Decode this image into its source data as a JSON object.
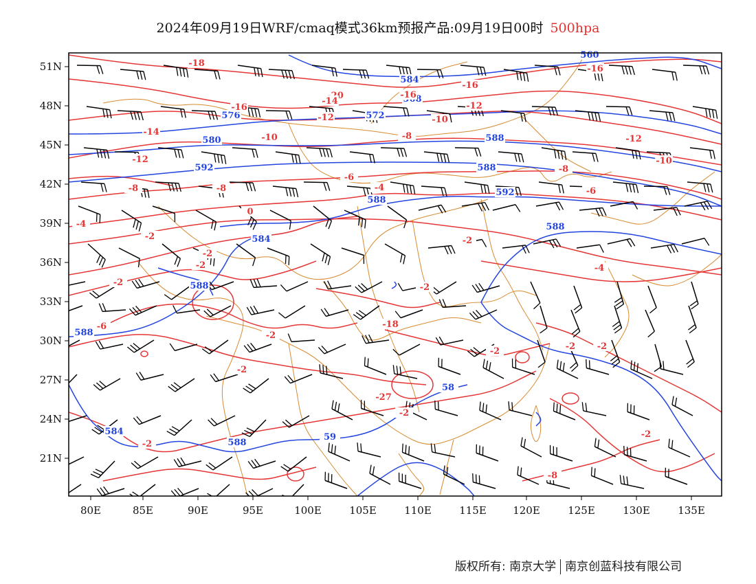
{
  "title": {
    "main": "2024年09月19日WRF/cmaq模式36km预报产品:09月19日00时",
    "level": "500hpa"
  },
  "map": {
    "x_ticks": [
      "80E",
      "85E",
      "90E",
      "95E",
      "100E",
      "105E",
      "110E",
      "115E",
      "120E",
      "125E",
      "130E",
      "135E"
    ],
    "y_ticks": [
      "51N",
      "48N",
      "45N",
      "42N",
      "39N",
      "36N",
      "33N",
      "30N",
      "27N",
      "24N",
      "21N"
    ],
    "colors": {
      "height_contour": "#2244e0",
      "temperature_contour": "#e53535",
      "boundary": "#d88a30",
      "wind_barb": "#000000",
      "frame": "#000000"
    },
    "height_labels": [
      "560",
      "584",
      "588",
      "576",
      "572",
      "568",
      "580",
      "592",
      "584",
      "588",
      "588",
      "592",
      "588",
      "588",
      "588",
      "588",
      "584",
      "59",
      "58"
    ],
    "temperature_labels": [
      "-18",
      "-20",
      "-16",
      "-16",
      "-14",
      "-16",
      "-12",
      "-14",
      "-12",
      "-10",
      "-12",
      "-12",
      "-10",
      "-8",
      "-10",
      "-8",
      "-8",
      "-6",
      "-4",
      "-8",
      "-6",
      "-4",
      "-2",
      "0",
      "-2",
      "-2",
      "-2",
      "-4",
      "-2",
      "-2",
      "-2",
      "-2",
      "-2",
      "-2",
      "-2",
      "-27",
      "-2",
      "-2",
      "-2",
      "-8",
      "-6",
      "-18",
      "-16"
    ]
  },
  "copyright": {
    "left": "版权所有: 南京大学",
    "right": "南京创蓝科技有限公司"
  }
}
